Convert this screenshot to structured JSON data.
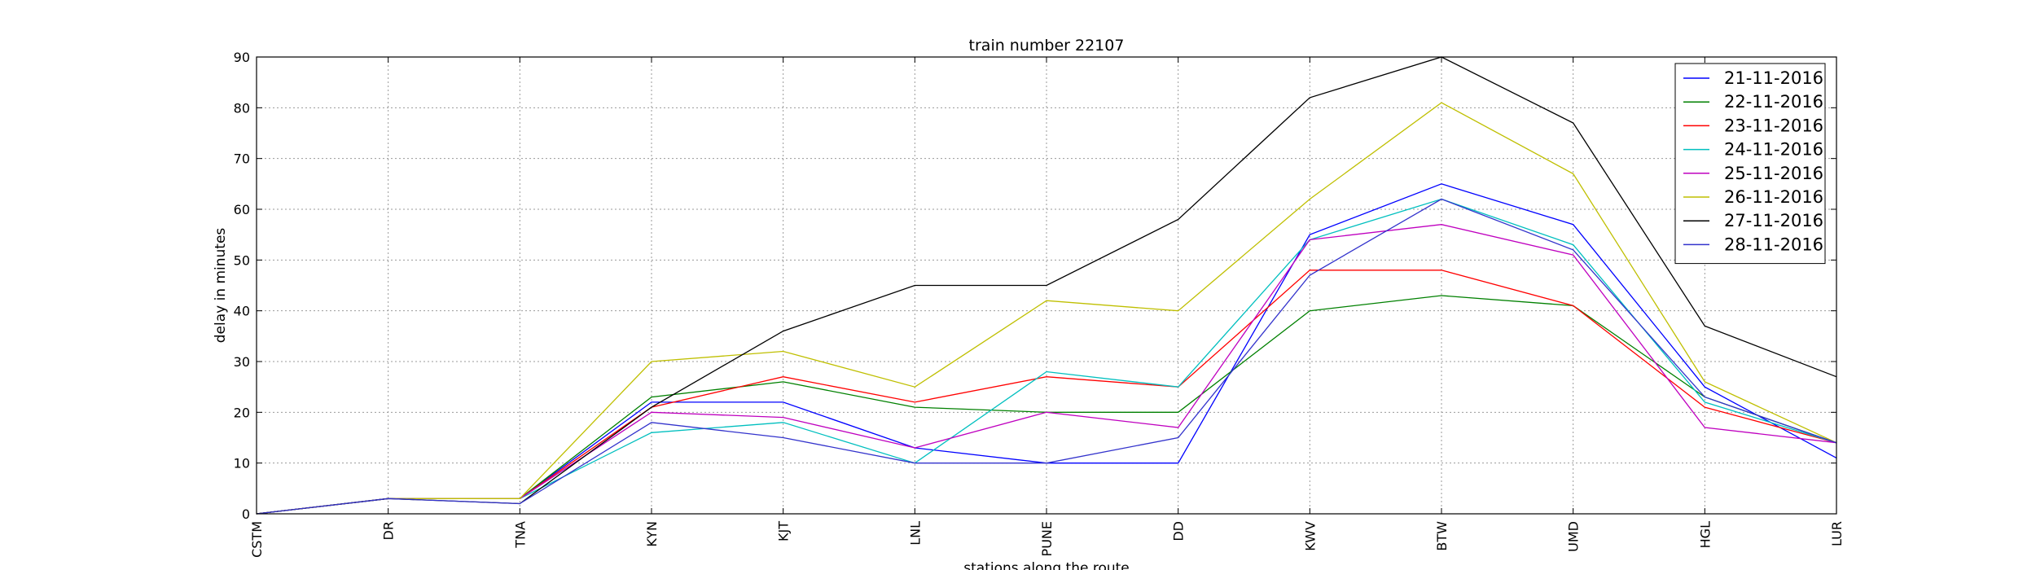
{
  "chart_data": {
    "type": "line",
    "title": "train number 22107",
    "xlabel": "stations along the route",
    "ylabel": "delay in minutes",
    "ylim": [
      0,
      90
    ],
    "yticks": [
      0,
      10,
      20,
      30,
      40,
      50,
      60,
      70,
      80,
      90
    ],
    "grid": true,
    "legend_position": "top-right",
    "categories": [
      "CSTM",
      "DR",
      "TNA",
      "KYN",
      "KJT",
      "LNL",
      "PUNE",
      "DD",
      "KWV",
      "BTW",
      "UMD",
      "HGL",
      "LUR"
    ],
    "series": [
      {
        "name": "21-11-2016",
        "color": "#0000ff",
        "values": [
          0,
          3,
          3,
          22,
          22,
          13,
          10,
          10,
          55,
          65,
          57,
          25,
          11
        ]
      },
      {
        "name": "22-11-2016",
        "color": "#008000",
        "values": [
          0,
          3,
          3,
          23,
          26,
          21,
          20,
          20,
          40,
          43,
          41,
          23,
          14
        ]
      },
      {
        "name": "23-11-2016",
        "color": "#ff0000",
        "values": [
          0,
          3,
          3,
          21,
          27,
          22,
          27,
          25,
          48,
          48,
          41,
          21,
          14
        ]
      },
      {
        "name": "24-11-2016",
        "color": "#00bfbf",
        "values": [
          0,
          3,
          3,
          16,
          18,
          10,
          28,
          25,
          54,
          62,
          53,
          22,
          14
        ]
      },
      {
        "name": "25-11-2016",
        "color": "#bf00bf",
        "values": [
          0,
          3,
          3,
          20,
          19,
          13,
          20,
          17,
          54,
          57,
          51,
          17,
          14
        ]
      },
      {
        "name": "26-11-2016",
        "color": "#bfbf00",
        "values": [
          0,
          3,
          3,
          30,
          32,
          25,
          42,
          40,
          62,
          81,
          67,
          26,
          14
        ]
      },
      {
        "name": "27-11-2016",
        "color": "#000000",
        "values": [
          0,
          3,
          2,
          21,
          36,
          45,
          45,
          58,
          82,
          90,
          77,
          37,
          27
        ]
      },
      {
        "name": "28-11-2016",
        "color": "#3333cc",
        "values": [
          0,
          3,
          2,
          18,
          15,
          10,
          10,
          15,
          47,
          62,
          52,
          23,
          14
        ]
      }
    ]
  }
}
